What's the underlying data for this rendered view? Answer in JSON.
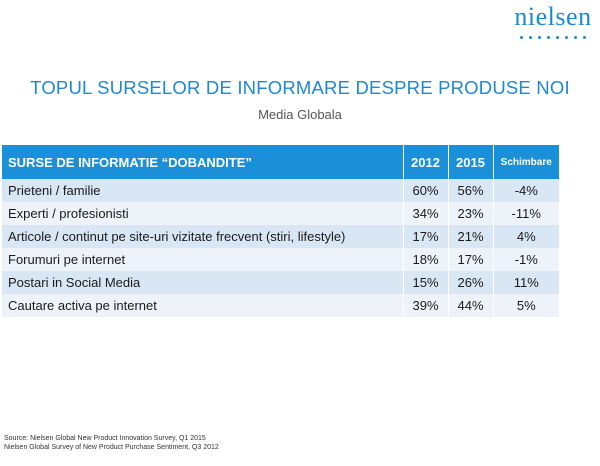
{
  "logo": {
    "text": "nielsen"
  },
  "title": "TOPUL SURSELOR DE INFORMARE DESPRE PRODUSE NOI",
  "subtitle": "Media Globala",
  "table": {
    "headers": [
      "SURSE DE INFORMATIE “DOBANDITE”",
      "2012",
      "2015",
      "Schimbare"
    ],
    "rows": [
      {
        "label": "Prieteni / familie",
        "y2012": "60%",
        "y2015": "56%",
        "change": "-4%"
      },
      {
        "label": "Experti / profesionisti",
        "y2012": "34%",
        "y2015": "23%",
        "change": "-11%"
      },
      {
        "label": "Articole / continut pe site-uri vizitate frecvent (stiri, lifestyle)",
        "y2012": "17%",
        "y2015": "21%",
        "change": "4%"
      },
      {
        "label": "Forumuri pe internet",
        "y2012": "18%",
        "y2015": "17%",
        "change": "-1%"
      },
      {
        "label": "Postari in Social Media",
        "y2012": "15%",
        "y2015": "26%",
        "change": "11%"
      },
      {
        "label": "Cautare activa pe internet",
        "y2012": "39%",
        "y2015": "44%",
        "change": "5%"
      }
    ]
  },
  "sources": [
    "Source: Nielsen Global New Product Innovation Survey, Q1 2015",
    "Nielsen Global Survey of New Product Purchase Sentiment, Q3 2012"
  ],
  "colors": {
    "accent": "#1f88d0",
    "header_bg": "#1c8fd9",
    "row_dark": "#d9e6f4",
    "row_light": "#eef3f9"
  }
}
